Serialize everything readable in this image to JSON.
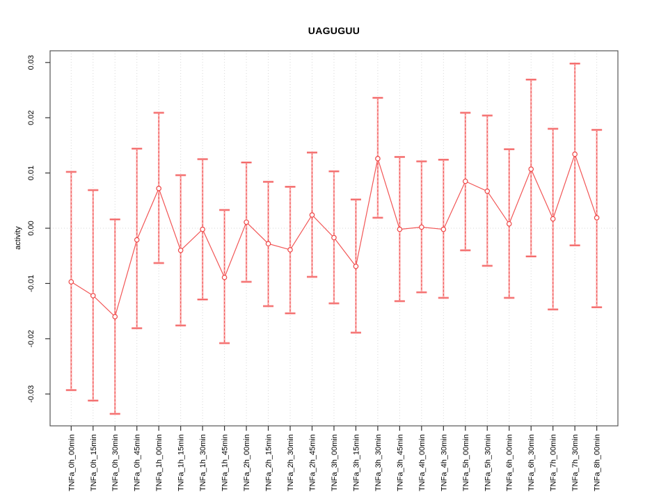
{
  "colors": {
    "series_line": "#f25555",
    "errorbar_fill": "#fbadad",
    "errorbar_dash": "#ee4f4f",
    "cap_pink": "#f9a0a0",
    "cap_core": "#f15555",
    "marker_stroke": "#ee4545",
    "marker_fill": "#ffffff",
    "grid": "#d6d6d6",
    "axis": "#555555",
    "tick": "#333333",
    "text": "#000000",
    "background": "#ffffff"
  },
  "chart_data": {
    "type": "line",
    "title": "UAGUGUU",
    "xlabel": "",
    "ylabel": "activity",
    "ylim": [
      -0.034,
      0.031
    ],
    "yticks": [
      -0.03,
      -0.02,
      -0.01,
      0,
      0.01,
      0.02,
      0.03
    ],
    "ytick_labels": [
      "-0.03",
      "-0.02",
      "-0.01",
      "0.00",
      "0.01",
      "0.02",
      "0.03"
    ],
    "grid": "dotted vertical line at every category; dotted horizontal line at y=0",
    "legend_position": "none",
    "marker": "open-circle",
    "error_bars": true,
    "categories": [
      "TNFa_0h_00min",
      "TNFa_0h_15min",
      "TNFa_0h_30min",
      "TNFa_0h_45min",
      "TNFa_1h_00min",
      "TNFa_1h_15min",
      "TNFa_1h_30min",
      "TNFa_1h_45min",
      "TNFa_2h_00min",
      "TNFa_2h_15min",
      "TNFa_2h_30min",
      "TNFa_2h_45min",
      "TNFa_3h_00min",
      "TNFa_3h_15min",
      "TNFa_3h_30min",
      "TNFa_3h_45min",
      "TNFa_4h_00min",
      "TNFa_4h_30min",
      "TNFa_5h_00min",
      "TNFa_5h_30min",
      "TNFa_6h_00min",
      "TNFa_6h_30min",
      "TNFa_7h_00min",
      "TNFa_7h_30min",
      "TNFa_8h_00min"
    ],
    "series": [
      {
        "name": "activity",
        "values": [
          -0.0097,
          -0.0122,
          -0.016,
          -0.0021,
          0.0072,
          -0.004,
          -0.0002,
          -0.0089,
          0.0011,
          -0.0028,
          -0.0039,
          0.0024,
          -0.0017,
          -0.0069,
          0.0126,
          -0.0002,
          0.0002,
          -0.0002,
          0.0085,
          0.0067,
          0.0008,
          0.0107,
          0.0017,
          0.0134,
          0.0019
        ],
        "upper": [
          0.0102,
          0.0069,
          0.0016,
          0.0144,
          0.0209,
          0.0096,
          0.0125,
          0.0033,
          0.0119,
          0.0084,
          0.0075,
          0.0137,
          0.0103,
          0.0052,
          0.0236,
          0.0129,
          0.0121,
          0.0124,
          0.0209,
          0.0204,
          0.0143,
          0.0269,
          0.018,
          0.0298,
          0.0178
        ],
        "lower": [
          -0.0293,
          -0.0312,
          -0.0336,
          -0.0181,
          -0.0063,
          -0.0176,
          -0.0129,
          -0.0208,
          -0.0097,
          -0.0141,
          -0.0154,
          -0.0088,
          -0.0136,
          -0.0189,
          0.0019,
          -0.0132,
          -0.0116,
          -0.0126,
          -0.004,
          -0.0068,
          -0.0126,
          -0.0051,
          -0.0147,
          -0.0031,
          -0.0143
        ]
      }
    ]
  }
}
